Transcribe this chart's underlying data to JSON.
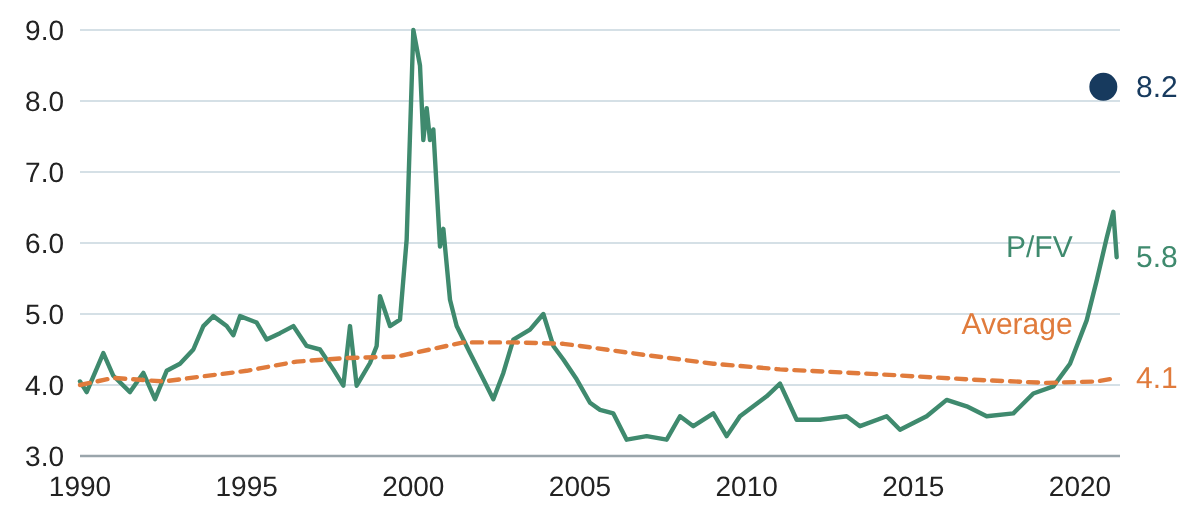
{
  "chart_data": {
    "type": "line",
    "xlim": [
      1990,
      2021.2
    ],
    "xticks": [
      1990,
      1995,
      2000,
      2005,
      2010,
      2015,
      2020
    ],
    "ylim": [
      3,
      9
    ],
    "yticks": [
      {
        "value": 3,
        "label": "3.0"
      },
      {
        "value": 4,
        "label": "4.0"
      },
      {
        "value": 5,
        "label": "5.0"
      },
      {
        "value": 6,
        "label": "6.0"
      },
      {
        "value": 7,
        "label": "7.0"
      },
      {
        "value": 8,
        "label": "8.0"
      },
      {
        "value": 9,
        "label": "9.0"
      }
    ],
    "grid": "y",
    "series": [
      {
        "name": "P/FV",
        "color": "#3f8a6e",
        "line_style": "solid",
        "marker": "none",
        "x": [
          1990.0,
          1990.2,
          1990.7,
          1991.0,
          1991.5,
          1991.9,
          1992.25,
          1992.6,
          1993.0,
          1993.4,
          1993.7,
          1994.0,
          1994.4,
          1994.6,
          1994.8,
          1995.3,
          1995.6,
          1996.0,
          1996.4,
          1996.8,
          1997.2,
          1997.6,
          1997.9,
          1998.1,
          1998.3,
          1998.7,
          1998.9,
          1999.0,
          1999.3,
          1999.6,
          1999.8,
          2000.0,
          2000.2,
          2000.3,
          2000.4,
          2000.5,
          2000.6,
          2000.8,
          2000.9,
          2001.1,
          2001.3,
          2001.7,
          2002.1,
          2002.4,
          2002.7,
          2003.0,
          2003.5,
          2003.9,
          2004.2,
          2004.5,
          2004.9,
          2005.3,
          2005.6,
          2006.0,
          2006.4,
          2007.0,
          2007.6,
          2008.0,
          2008.4,
          2009.0,
          2009.4,
          2009.8,
          2010.6,
          2011.0,
          2011.5,
          2012.2,
          2013.0,
          2013.4,
          2014.2,
          2014.6,
          2015.4,
          2016.0,
          2016.6,
          2017.2,
          2018.0,
          2018.6,
          2019.2,
          2019.7,
          2020.2,
          2020.5,
          2020.8,
          2021.0,
          2021.1
        ],
        "values": [
          4.05,
          3.9,
          4.45,
          4.13,
          3.9,
          4.17,
          3.8,
          4.2,
          4.3,
          4.5,
          4.83,
          4.97,
          4.83,
          4.7,
          4.97,
          4.88,
          4.64,
          4.73,
          4.83,
          4.55,
          4.5,
          4.22,
          3.99,
          4.83,
          3.99,
          4.31,
          4.55,
          5.25,
          4.83,
          4.92,
          6.05,
          9.0,
          8.5,
          7.45,
          7.9,
          7.45,
          7.6,
          5.95,
          6.2,
          5.2,
          4.83,
          4.45,
          4.08,
          3.8,
          4.17,
          4.64,
          4.78,
          5.0,
          4.55,
          4.36,
          4.08,
          3.75,
          3.65,
          3.6,
          3.23,
          3.28,
          3.23,
          3.56,
          3.42,
          3.6,
          3.28,
          3.56,
          3.84,
          4.02,
          3.51,
          3.51,
          3.56,
          3.42,
          3.56,
          3.37,
          3.56,
          3.79,
          3.7,
          3.56,
          3.6,
          3.88,
          3.98,
          4.3,
          4.91,
          5.47,
          6.07,
          6.44,
          5.8
        ],
        "value_labels": [
          null,
          null,
          null,
          null,
          null,
          null,
          null,
          null,
          null,
          null,
          null,
          null,
          null,
          null,
          null,
          null,
          null,
          null,
          null,
          null,
          null,
          null,
          null,
          null,
          null,
          null,
          null,
          null,
          null,
          null,
          null,
          null,
          null,
          null,
          null,
          null,
          null,
          null,
          null,
          null,
          null,
          null,
          null,
          null,
          null,
          null,
          null,
          null,
          null,
          null,
          null,
          null,
          null,
          null,
          null,
          null,
          null,
          null,
          null,
          null,
          null,
          null,
          null,
          null,
          null,
          null,
          null,
          null,
          null,
          null,
          null,
          null,
          null,
          null,
          null,
          null,
          null,
          null,
          null,
          null,
          null,
          null,
          "5.8"
        ]
      },
      {
        "name": "Average",
        "color": "#e07b3c",
        "line_style": "dashed",
        "marker": "none",
        "x": [
          1990.0,
          1991.0,
          1992.5,
          1995.0,
          1996.5,
          1998.0,
          1999.5,
          2000.5,
          2001.5,
          2003.0,
          2004.5,
          2005.0,
          2007.0,
          2009.0,
          2011.0,
          2014.0,
          2017.0,
          2019.0,
          2020.5,
          2021.1
        ],
        "values": [
          4.0,
          4.1,
          4.05,
          4.2,
          4.33,
          4.38,
          4.4,
          4.5,
          4.6,
          4.6,
          4.58,
          4.55,
          4.42,
          4.3,
          4.22,
          4.15,
          4.07,
          4.03,
          4.05,
          4.1
        ],
        "value_labels": [
          null,
          null,
          null,
          null,
          null,
          null,
          null,
          null,
          null,
          null,
          null,
          null,
          null,
          null,
          null,
          null,
          null,
          null,
          null,
          "4.1"
        ]
      },
      {
        "type": "scatter",
        "color": "#173a5e",
        "marker": "circle",
        "x": [
          2020.7
        ],
        "values": [
          8.2
        ],
        "value_labels": [
          "8.2"
        ]
      }
    ]
  }
}
